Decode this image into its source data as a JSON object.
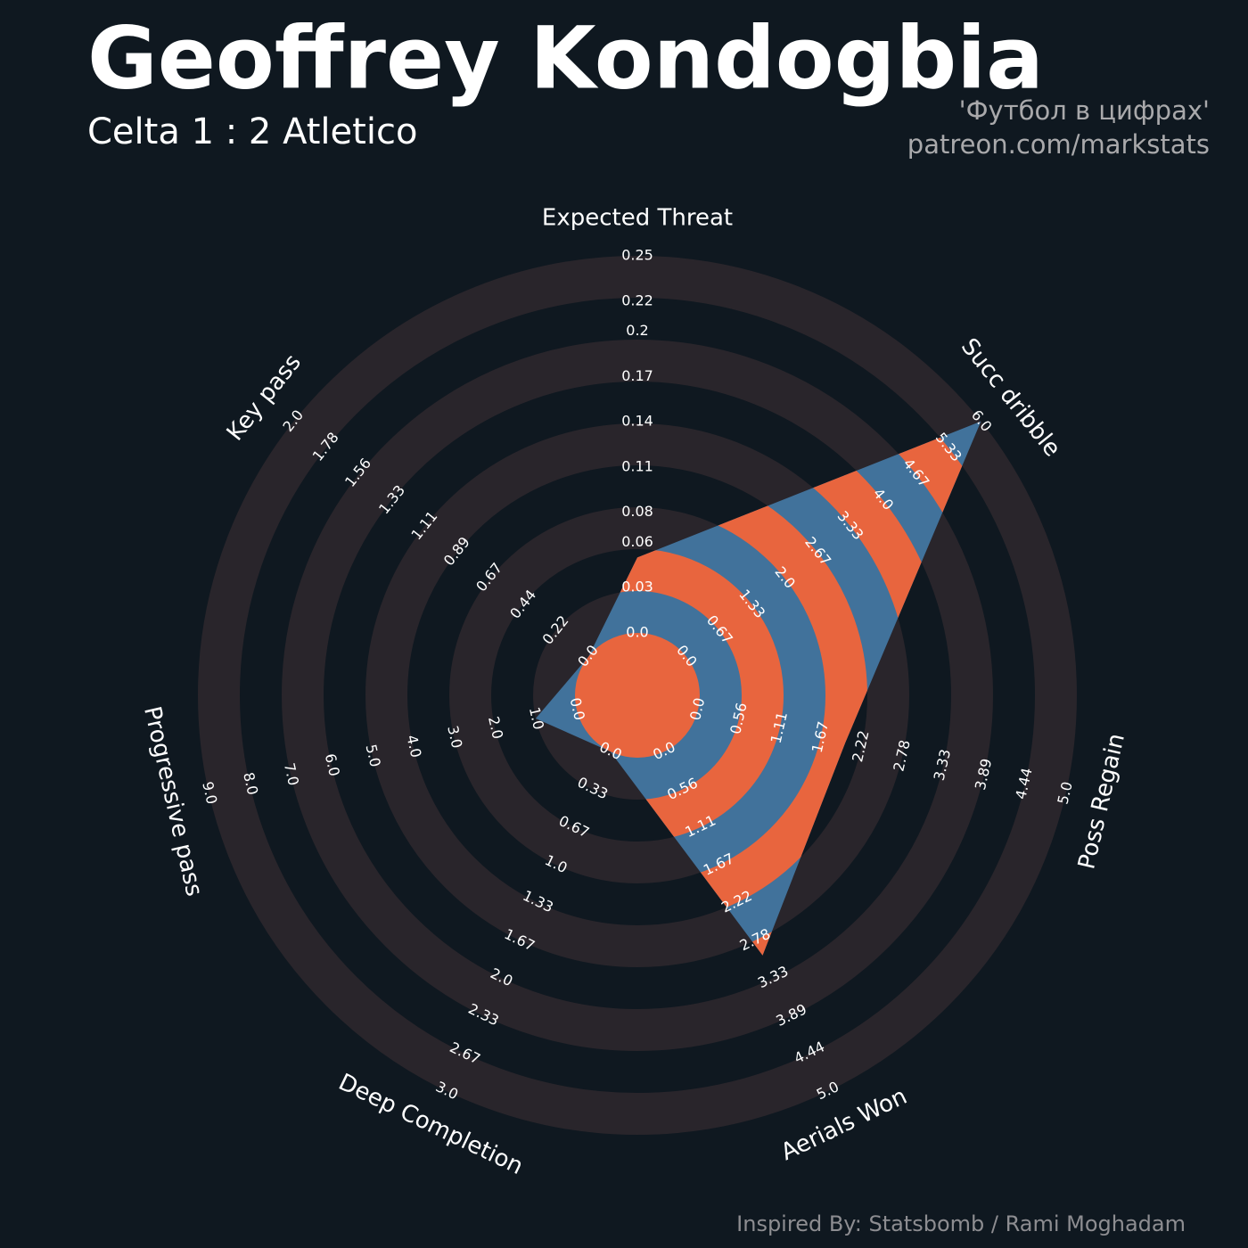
{
  "chart_data": {
    "type": "radar",
    "title": "Geoffrey Kondogbia",
    "subtitle": "Celta 1 : 2 Atletico",
    "source": "'Футбол в цифрах'",
    "link": "patreon.com/markstats",
    "credit": "Inspired By: Statsbomb / Rami Moghadam",
    "colors": [
      "#41729b",
      "#e8653e"
    ],
    "band_color": "#29252b",
    "axes": [
      {
        "name": "Expected Threat",
        "lim": [
          0,
          0.25
        ],
        "ticks": [
          {
            "value": 0,
            "label": "0.0"
          },
          0.03,
          0.06,
          0.08,
          0.11,
          0.14,
          0.17,
          0.2,
          0.22,
          0.25
        ]
      },
      {
        "name": "Succ dribble",
        "lim": [
          0,
          6
        ],
        "ticks": [
          {
            "value": 0,
            "label": "0.0"
          },
          0.67,
          1.33,
          {
            "value": 2,
            "label": "2.0"
          },
          2.67,
          3.33,
          {
            "value": 4,
            "label": "4.0"
          },
          4.67,
          5.33,
          {
            "value": 6,
            "label": "6.0"
          }
        ]
      },
      {
        "name": "Poss Regain",
        "lim": [
          0,
          5
        ],
        "ticks": [
          {
            "value": 0,
            "label": "0.0"
          },
          0.56,
          1.11,
          1.67,
          2.22,
          2.78,
          3.33,
          3.89,
          4.44,
          {
            "value": 5,
            "label": "5.0"
          }
        ]
      },
      {
        "name": "Aerials Won",
        "lim": [
          0,
          5
        ],
        "ticks": [
          {
            "value": 0,
            "label": "0.0"
          },
          0.56,
          1.11,
          1.67,
          2.22,
          2.78,
          3.33,
          3.89,
          4.44,
          {
            "value": 5,
            "label": "5.0"
          }
        ]
      },
      {
        "name": "Deep Completion",
        "lim": [
          0,
          3
        ],
        "ticks": [
          {
            "value": 0,
            "label": "0.0"
          },
          0.33,
          0.67,
          {
            "value": 1,
            "label": "1.0"
          },
          1.33,
          1.67,
          {
            "value": 2,
            "label": "2.0"
          },
          2.33,
          2.67,
          {
            "value": 3,
            "label": "3.0"
          }
        ]
      },
      {
        "name": "Progressive pass",
        "lim": [
          0,
          9
        ],
        "ticks": [
          {
            "value": 0,
            "label": "0.0"
          },
          {
            "value": 1,
            "label": "1.0"
          },
          {
            "value": 2,
            "label": "2.0"
          },
          {
            "value": 3,
            "label": "3.0"
          },
          {
            "value": 4,
            "label": "4.0"
          },
          {
            "value": 5,
            "label": "5.0"
          },
          {
            "value": 6,
            "label": "6.0"
          },
          {
            "value": 7,
            "label": "7.0"
          },
          {
            "value": 8,
            "label": "8.0"
          },
          {
            "value": 9,
            "label": "9.0"
          }
        ]
      },
      {
        "name": "Key pass",
        "lim": [
          0,
          2
        ],
        "ticks": [
          {
            "value": 0,
            "label": "0.0"
          },
          0.22,
          0.44,
          0.67,
          0.89,
          1.11,
          1.33,
          1.56,
          1.78,
          {
            "value": 2,
            "label": "2.0"
          }
        ]
      }
    ],
    "values": [
      0.05,
      6,
      2,
      3,
      0,
      1,
      0
    ]
  }
}
